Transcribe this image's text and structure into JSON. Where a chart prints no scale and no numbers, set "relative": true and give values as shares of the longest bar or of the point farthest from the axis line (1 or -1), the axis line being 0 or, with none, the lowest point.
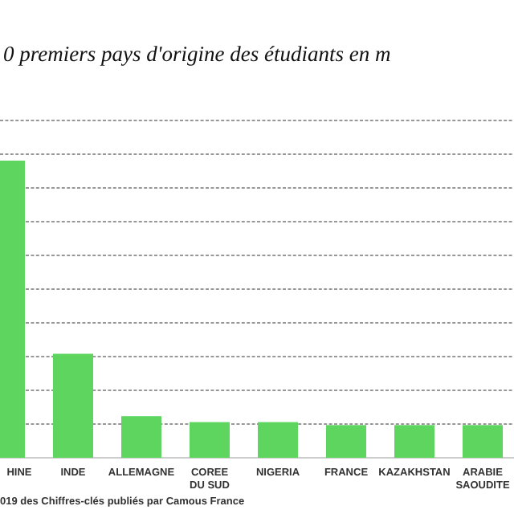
{
  "chart_data": {
    "type": "bar",
    "title": "0 premiers pays d'origine des étudiants en m",
    "categories": [
      "HINE",
      "INDE",
      "ALLEMAGNE",
      "COREE DU SUD",
      "NIGERIA",
      "FRANCE",
      "KAZAKHSTAN",
      "ARABIE SAOUDITE"
    ],
    "values": [
      1,
      0.35,
      0.14,
      0.12,
      0.12,
      0.11,
      0.11,
      0.11
    ],
    "color": "#5dd55f",
    "relative": true,
    "grid": "y",
    "annotations": [
      "019 des Chiffres-clés publiés par Camous France"
    ]
  }
}
